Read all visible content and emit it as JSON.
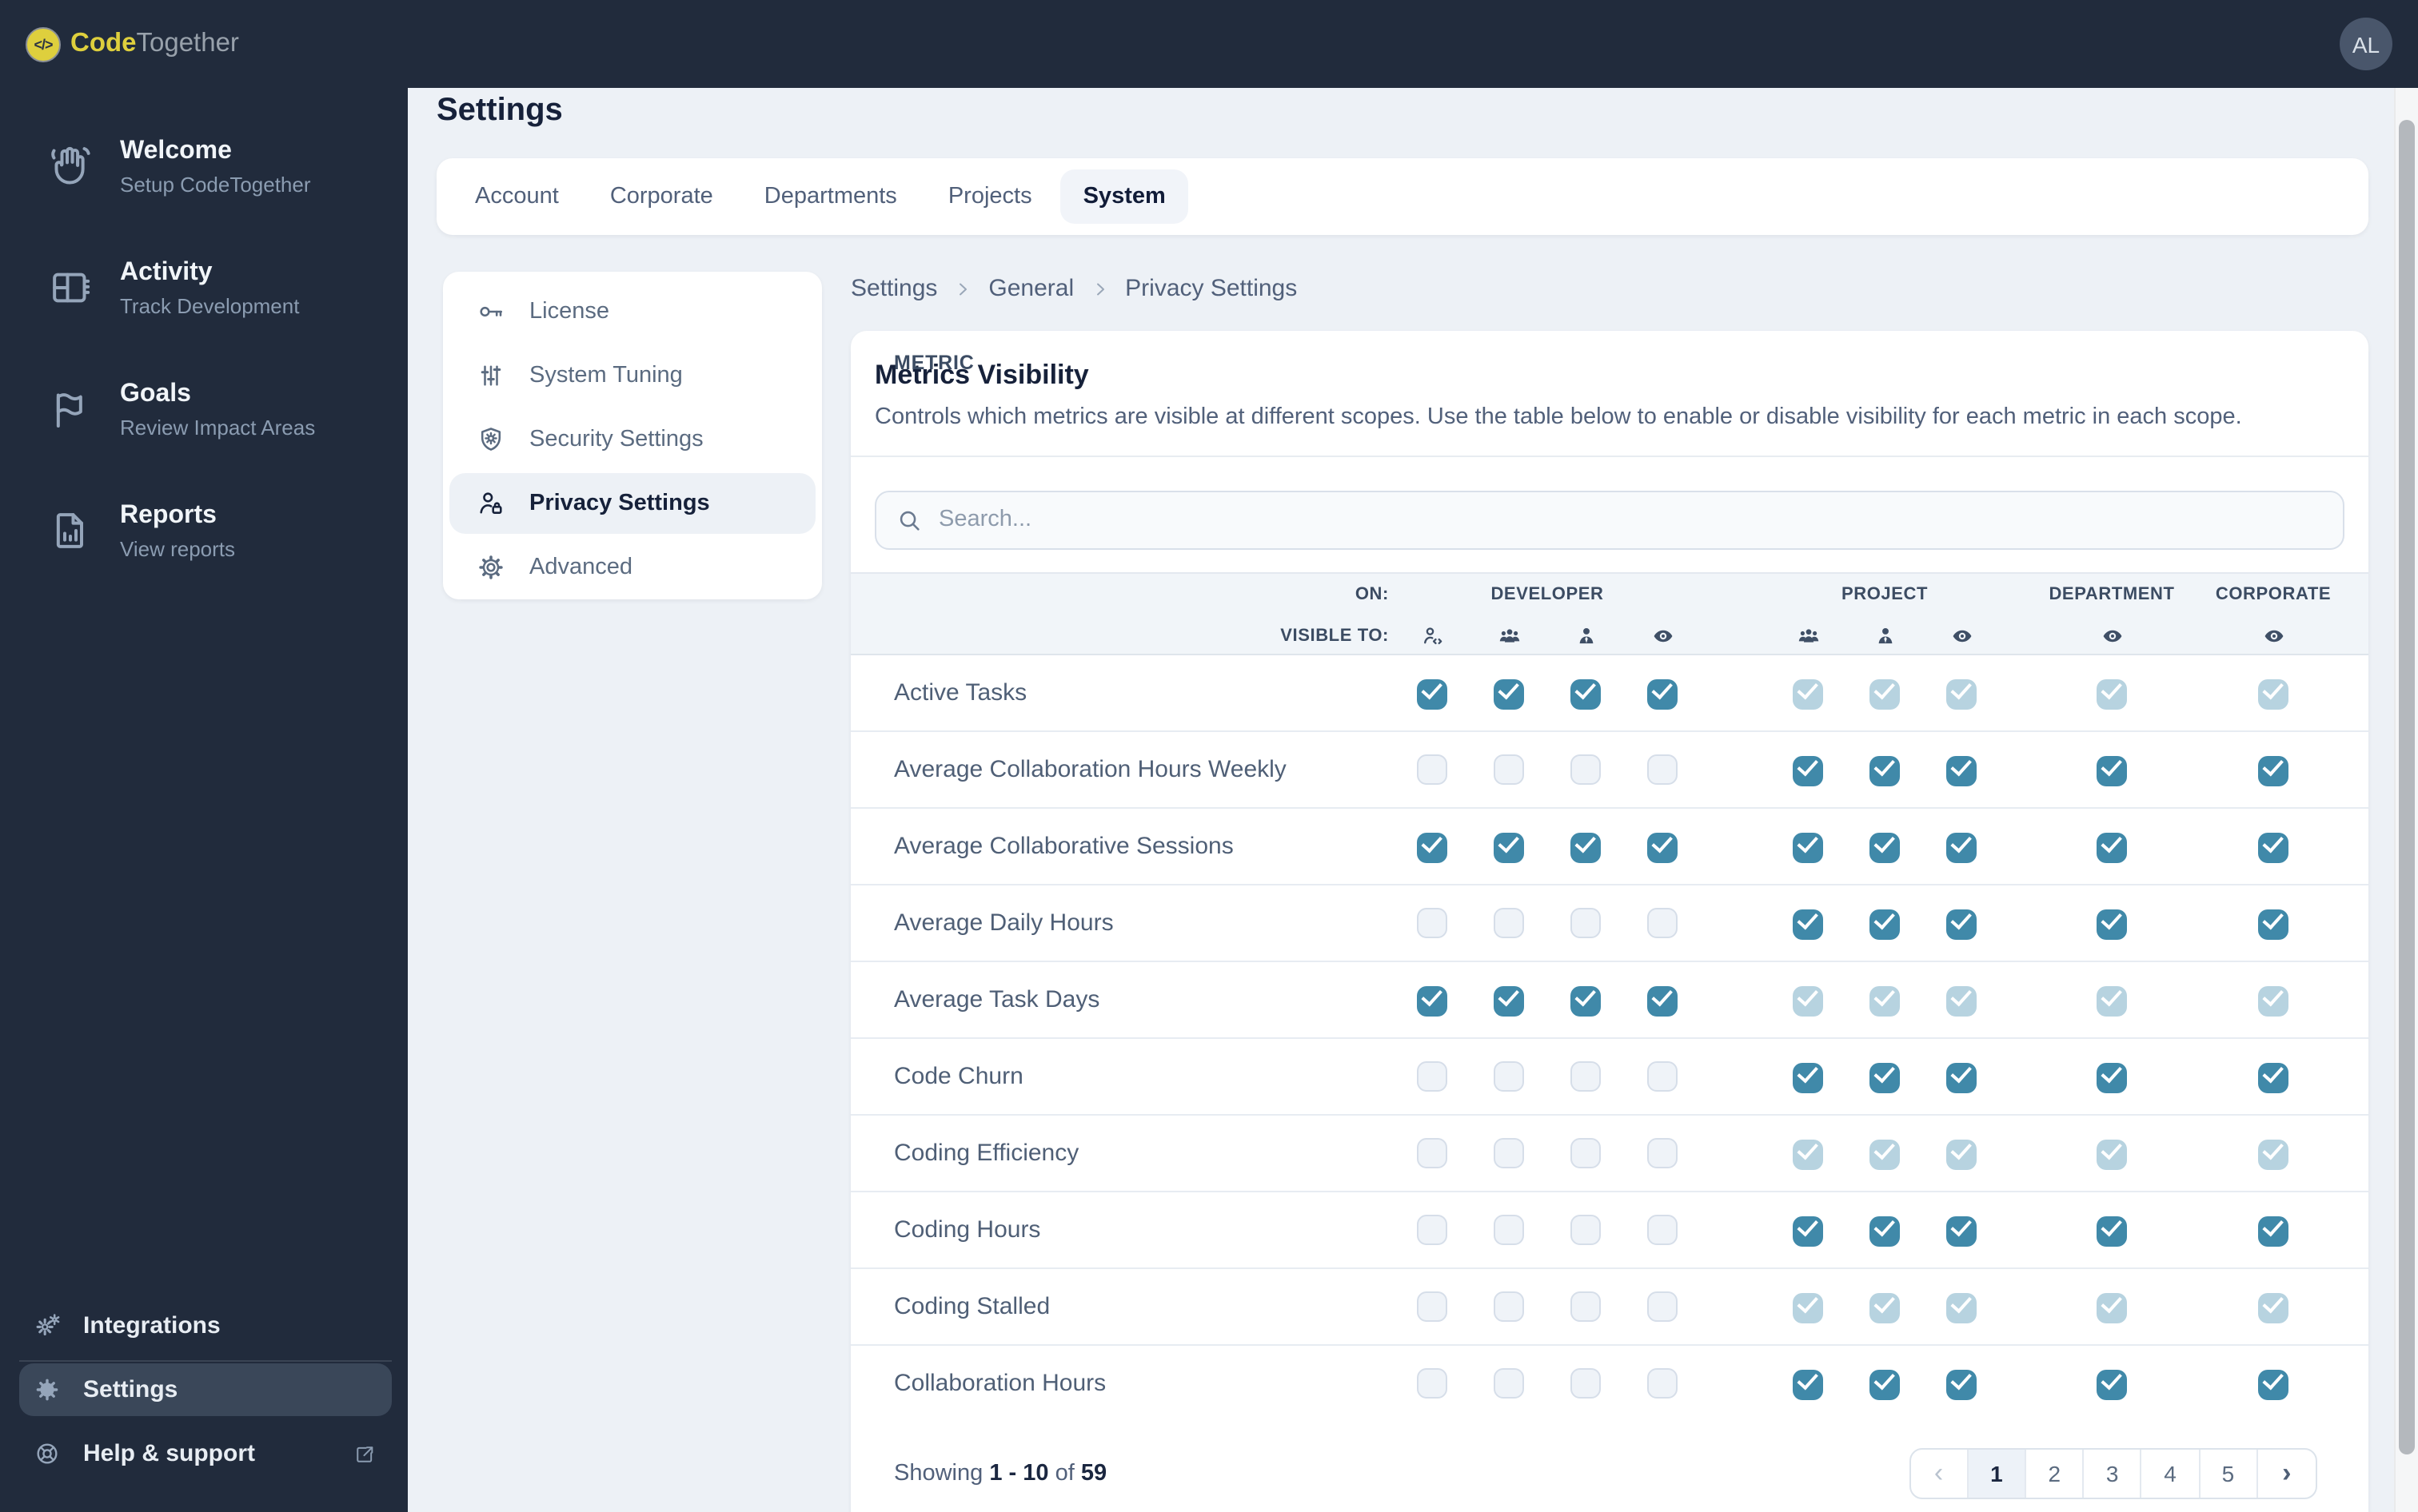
{
  "topbar": {
    "logo_mark": "</>",
    "logo_code": "Code",
    "logo_together": "Together",
    "avatar_initials": "AL"
  },
  "sidebar": {
    "items": [
      {
        "icon": "hand-wave-icon",
        "title": "Welcome",
        "subtitle": "Setup CodeTogether"
      },
      {
        "icon": "activity-board-icon",
        "title": "Activity",
        "subtitle": "Track Development"
      },
      {
        "icon": "flag-icon",
        "title": "Goals",
        "subtitle": "Review Impact Areas"
      },
      {
        "icon": "report-file-icon",
        "title": "Reports",
        "subtitle": "View reports"
      }
    ],
    "bottom_items": [
      {
        "icon": "gears-icon",
        "label": "Integrations",
        "active": false,
        "external": false
      },
      {
        "icon": "gear-icon",
        "label": "Settings",
        "active": true,
        "external": false
      },
      {
        "icon": "life-buoy-icon",
        "label": "Help & support",
        "active": false,
        "external": true
      }
    ]
  },
  "page": {
    "title": "Settings"
  },
  "tabs": {
    "items": [
      "Account",
      "Corporate",
      "Departments",
      "Projects",
      "System"
    ],
    "active": "System"
  },
  "subnav": {
    "items": [
      {
        "icon": "key-icon",
        "label": "License",
        "active": false
      },
      {
        "icon": "sliders-icon",
        "label": "System Tuning",
        "active": false
      },
      {
        "icon": "shield-gear-icon",
        "label": "Security Settings",
        "active": false
      },
      {
        "icon": "person-lock-icon",
        "label": "Privacy Settings",
        "active": true
      },
      {
        "icon": "gear-outline-icon",
        "label": "Advanced",
        "active": false
      }
    ]
  },
  "breadcrumb": {
    "items": [
      "Settings",
      "General",
      "Privacy Settings"
    ]
  },
  "panel": {
    "title": "Metrics Visibility",
    "description": "Controls which metrics are visible at different scopes. Use the table below to enable or disable visibility for each metric in each scope.",
    "search_placeholder": "Search..."
  },
  "table": {
    "metric_header": "METRIC",
    "on_label": "ON:",
    "visible_to_label": "VISIBLE TO:",
    "groups": [
      {
        "label": "DEVELOPER",
        "col_start": 2,
        "col_end": 6
      },
      {
        "label": "PROJECT",
        "col_start": 7,
        "col_end": 10
      },
      {
        "label": "DEPARTMENT",
        "col_start": 11,
        "col_end": 12
      },
      {
        "label": "CORPORATE",
        "col_start": 13,
        "col_end": 14
      }
    ],
    "column_icons": [
      "developer-icon",
      "team-icon",
      "manager-icon",
      "everyone-icon",
      "team-icon",
      "manager-icon",
      "everyone-icon",
      "everyone-icon",
      "everyone-icon"
    ],
    "rows": [
      {
        "metric": "Active Tasks",
        "states": [
          "on",
          "on",
          "on",
          "on",
          "locked",
          "locked",
          "locked",
          "locked",
          "locked"
        ]
      },
      {
        "metric": "Average Collaboration Hours Weekly",
        "states": [
          "off",
          "off",
          "off",
          "off",
          "on",
          "on",
          "on",
          "on",
          "on"
        ]
      },
      {
        "metric": "Average Collaborative Sessions",
        "states": [
          "on",
          "on",
          "on",
          "on",
          "on",
          "on",
          "on",
          "on",
          "on"
        ]
      },
      {
        "metric": "Average Daily Hours",
        "states": [
          "off",
          "off",
          "off",
          "off",
          "on",
          "on",
          "on",
          "on",
          "on"
        ]
      },
      {
        "metric": "Average Task Days",
        "states": [
          "on",
          "on",
          "on",
          "on",
          "locked",
          "locked",
          "locked",
          "locked",
          "locked"
        ]
      },
      {
        "metric": "Code Churn",
        "states": [
          "off",
          "off",
          "off",
          "off",
          "on",
          "on",
          "on",
          "on",
          "on"
        ]
      },
      {
        "metric": "Coding Efficiency",
        "states": [
          "off",
          "off",
          "off",
          "off",
          "locked",
          "locked",
          "locked",
          "locked",
          "locked"
        ]
      },
      {
        "metric": "Coding Hours",
        "states": [
          "off",
          "off",
          "off",
          "off",
          "on",
          "on",
          "on",
          "on",
          "on"
        ]
      },
      {
        "metric": "Coding Stalled",
        "states": [
          "off",
          "off",
          "off",
          "off",
          "locked",
          "locked",
          "locked",
          "locked",
          "locked"
        ]
      },
      {
        "metric": "Collaboration Hours",
        "states": [
          "off",
          "off",
          "off",
          "off",
          "on",
          "on",
          "on",
          "on",
          "on"
        ]
      }
    ]
  },
  "footer": {
    "showing_label": "Showing",
    "range": "1 - 10",
    "of_label": "of",
    "total": "59",
    "pages": [
      "1",
      "2",
      "3",
      "4",
      "5"
    ],
    "active_page": "1",
    "prev_glyph": "‹",
    "next_glyph": "›"
  },
  "colors": {
    "navy": "#212b3c",
    "accent_checked": "#4089a9",
    "accent_checked_disabled": "#b7d3e0",
    "brand_yellow": "#decf3d",
    "page_bg": "#edf1f6",
    "header_band": "#f1f5f9"
  }
}
